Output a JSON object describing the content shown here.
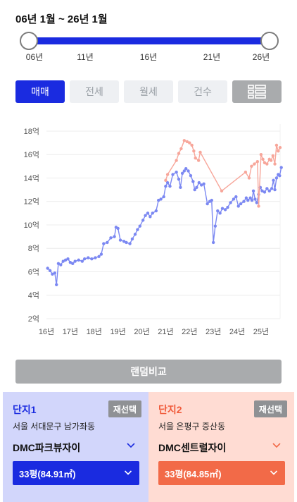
{
  "range": {
    "title": "06년 1월 ~ 26년 1월"
  },
  "slider": {
    "ticks": [
      "06년",
      "11년",
      "16년",
      "21년",
      "26년"
    ]
  },
  "type_tabs": [
    {
      "label": "매매",
      "active": true
    },
    {
      "label": "전세",
      "active": false
    },
    {
      "label": "월세",
      "active": false
    },
    {
      "label": "건수",
      "active": false
    }
  ],
  "list_icon": "list-view-icon",
  "chart_data": {
    "type": "line",
    "title": "",
    "xlabel": "",
    "ylabel": "",
    "x_tick_labels": [
      "16년",
      "17년",
      "18년",
      "19년",
      "20년",
      "21년",
      "22년",
      "23년",
      "24년",
      "25년"
    ],
    "y_tick_labels": [
      "2억",
      "4억",
      "6억",
      "8억",
      "10억",
      "12억",
      "14억",
      "16억",
      "18억"
    ],
    "xlim": [
      2016.0,
      2025.8
    ],
    "ylim": [
      2,
      18.6
    ],
    "grid": "horizontal",
    "series": [
      {
        "color": "#7b88f2",
        "points": [
          [
            2016.05,
            6.3
          ],
          [
            2016.15,
            6.1
          ],
          [
            2016.25,
            5.8
          ],
          [
            2016.35,
            5.9
          ],
          [
            2016.42,
            4.9
          ],
          [
            2016.5,
            6.7
          ],
          [
            2016.6,
            6.6
          ],
          [
            2016.7,
            6.9
          ],
          [
            2016.8,
            7.0
          ],
          [
            2016.9,
            7.1
          ],
          [
            2017.0,
            6.8
          ],
          [
            2017.1,
            6.7
          ],
          [
            2017.2,
            6.9
          ],
          [
            2017.35,
            7.0
          ],
          [
            2017.5,
            6.9
          ],
          [
            2017.6,
            7.1
          ],
          [
            2017.75,
            7.2
          ],
          [
            2017.9,
            7.1
          ],
          [
            2018.05,
            7.2
          ],
          [
            2018.2,
            7.3
          ],
          [
            2018.3,
            7.5
          ],
          [
            2018.4,
            8.4
          ],
          [
            2018.55,
            8.5
          ],
          [
            2018.7,
            8.9
          ],
          [
            2018.85,
            9.0
          ],
          [
            2018.92,
            9.8
          ],
          [
            2019.0,
            9.7
          ],
          [
            2019.1,
            8.7
          ],
          [
            2019.25,
            8.6
          ],
          [
            2019.35,
            8.5
          ],
          [
            2019.5,
            8.4
          ],
          [
            2019.6,
            8.8
          ],
          [
            2019.72,
            9.2
          ],
          [
            2019.82,
            9.6
          ],
          [
            2019.92,
            9.9
          ],
          [
            2020.05,
            10.4
          ],
          [
            2020.15,
            10.8
          ],
          [
            2020.25,
            11.0
          ],
          [
            2020.35,
            10.7
          ],
          [
            2020.45,
            11.0
          ],
          [
            2020.6,
            11.2
          ],
          [
            2020.7,
            12.1
          ],
          [
            2020.8,
            12.2
          ],
          [
            2020.92,
            12.4
          ],
          [
            2021.0,
            13.3
          ],
          [
            2021.08,
            13.6
          ],
          [
            2021.18,
            13.3
          ],
          [
            2021.3,
            14.3
          ],
          [
            2021.45,
            14.5
          ],
          [
            2021.55,
            13.9
          ],
          [
            2021.62,
            13.2
          ],
          [
            2021.7,
            14.4
          ],
          [
            2021.78,
            14.6
          ],
          [
            2021.85,
            14.8
          ],
          [
            2021.95,
            14.6
          ],
          [
            2022.05,
            14.2
          ],
          [
            2022.15,
            13.7
          ],
          [
            2022.22,
            13.0
          ],
          [
            2022.3,
            13.2
          ],
          [
            2022.4,
            13.6
          ],
          [
            2022.5,
            13.4
          ],
          [
            2022.6,
            13.5
          ],
          [
            2022.75,
            11.8
          ],
          [
            2022.85,
            12.0
          ],
          [
            2022.93,
            12.1
          ],
          [
            2023.0,
            8.5
          ],
          [
            2023.08,
            9.9
          ],
          [
            2023.18,
            11.2
          ],
          [
            2023.28,
            11.0
          ],
          [
            2023.38,
            11.4
          ],
          [
            2023.5,
            11.3
          ],
          [
            2023.6,
            11.5
          ],
          [
            2023.72,
            11.9
          ],
          [
            2023.85,
            12.2
          ],
          [
            2023.95,
            12.4
          ],
          [
            2024.05,
            11.6
          ],
          [
            2024.15,
            11.8
          ],
          [
            2024.28,
            12.0
          ],
          [
            2024.38,
            12.3
          ],
          [
            2024.45,
            12.1
          ],
          [
            2024.55,
            12.3
          ],
          [
            2024.62,
            12.1
          ],
          [
            2024.68,
            12.9
          ],
          [
            2024.75,
            12.2
          ],
          [
            2024.82,
            11.9
          ],
          [
            2024.9,
            12.6
          ],
          [
            2024.97,
            13.2
          ],
          [
            2025.05,
            12.9
          ],
          [
            2025.15,
            12.8
          ],
          [
            2025.25,
            13.1
          ],
          [
            2025.35,
            12.9
          ],
          [
            2025.45,
            13.1
          ],
          [
            2025.52,
            13.8
          ],
          [
            2025.58,
            13.0
          ],
          [
            2025.65,
            14.0
          ],
          [
            2025.72,
            14.3
          ],
          [
            2025.78,
            14.2
          ],
          [
            2025.85,
            14.9
          ]
        ]
      },
      {
        "color": "#f7a69a",
        "points": [
          [
            2021.0,
            13.8
          ],
          [
            2021.08,
            14.3
          ],
          [
            2021.45,
            15.5
          ],
          [
            2021.55,
            16.1
          ],
          [
            2021.65,
            16.5
          ],
          [
            2021.78,
            17.2
          ],
          [
            2021.9,
            17.1
          ],
          [
            2022.0,
            17.0
          ],
          [
            2022.1,
            16.8
          ],
          [
            2022.18,
            16.3
          ],
          [
            2022.25,
            15.7
          ],
          [
            2022.38,
            15.5
          ],
          [
            2022.45,
            16.2
          ],
          [
            2023.35,
            12.9
          ],
          [
            2024.35,
            14.5
          ],
          [
            2024.5,
            14.0
          ],
          [
            2024.6,
            15.0
          ],
          [
            2024.72,
            15.2
          ],
          [
            2024.85,
            15.4
          ],
          [
            2024.9,
            11.6
          ],
          [
            2025.0,
            16.0
          ],
          [
            2025.08,
            15.6
          ],
          [
            2025.15,
            15.3
          ],
          [
            2025.25,
            15.2
          ],
          [
            2025.35,
            15.6
          ],
          [
            2025.42,
            15.5
          ],
          [
            2025.5,
            15.9
          ],
          [
            2025.58,
            15.2
          ],
          [
            2025.65,
            16.8
          ],
          [
            2025.72,
            16.3
          ],
          [
            2025.8,
            16.6
          ]
        ]
      }
    ]
  },
  "random_compare": {
    "label": "랜덤비교"
  },
  "panel1": {
    "label": "단지1",
    "reselect": "재선택",
    "address": "서울 서대문구 남가좌동",
    "apt_name": "DMC파크뷰자이",
    "size": "33평(84.91㎡)",
    "accent": "#1a2be0"
  },
  "panel2": {
    "label": "단지2",
    "reselect": "재선택",
    "address": "서울 은평구 증산동",
    "apt_name": "DMC센트럴자이",
    "size": "33평(84.85㎡)",
    "accent": "#f26a48"
  }
}
